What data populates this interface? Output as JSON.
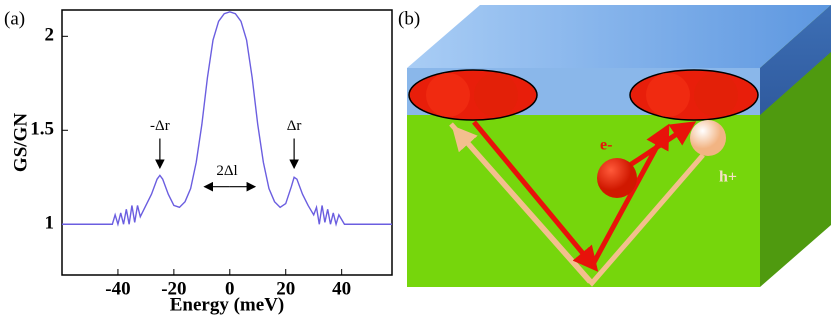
{
  "panels": [
    "(a)",
    "(b)"
  ],
  "chart_data": {
    "type": "line",
    "x_label": "Energy (meV)",
    "y_label": "GS/GN",
    "x": [
      -60,
      -45,
      -42,
      -41,
      -40,
      -39,
      -38,
      -37,
      -36,
      -35,
      -34,
      -33,
      -32,
      -30,
      -28,
      -26,
      -25,
      -24,
      -22,
      -20,
      -18,
      -16,
      -14,
      -12,
      -10,
      -8,
      -6,
      -4,
      -2,
      0,
      2,
      4,
      6,
      8,
      10,
      12,
      14,
      16,
      18,
      20,
      22,
      23,
      24,
      26,
      28,
      30,
      31,
      32,
      33,
      34,
      35,
      36,
      37,
      38,
      39,
      41,
      45,
      58
    ],
    "series": [
      {
        "color": "#6b5ee0",
        "values": [
          1,
          1,
          1,
          1.05,
          1,
          1.06,
          1,
          1.08,
          1,
          1.1,
          1.01,
          1.1,
          1.04,
          1.1,
          1.16,
          1.24,
          1.26,
          1.24,
          1.16,
          1.1,
          1.09,
          1.12,
          1.19,
          1.33,
          1.53,
          1.78,
          1.98,
          2.08,
          2.12,
          2.13,
          2.12,
          2.08,
          1.98,
          1.78,
          1.53,
          1.33,
          1.19,
          1.12,
          1.09,
          1.11,
          1.2,
          1.25,
          1.24,
          1.16,
          1.1,
          1.05,
          1.09,
          1,
          1.1,
          1.01,
          1.08,
          1,
          1.06,
          1,
          1.05,
          1,
          1,
          1
        ]
      }
    ],
    "xlim": [
      -60,
      58
    ],
    "ylim": [
      0.73,
      2.14
    ],
    "xticks": [
      -40,
      -20,
      0,
      20,
      40
    ],
    "yticks": [
      1,
      1.5,
      2
    ],
    "annotations": [
      "-Δr",
      "Δr",
      "2Δl"
    ]
  },
  "diagram": {
    "electron": "e-",
    "hole": "h+"
  }
}
